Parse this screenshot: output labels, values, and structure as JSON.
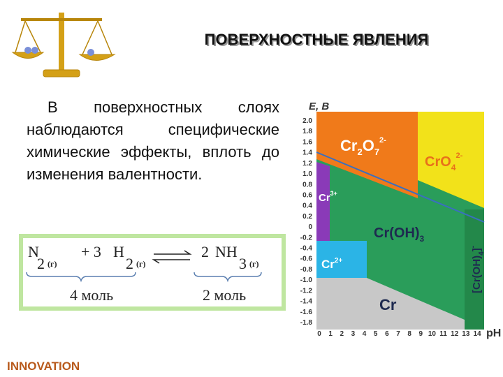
{
  "header": {
    "title": "ПОВЕРХНОСТНЫЕ ЯВЛЕНИЯ"
  },
  "text": "В поверхностных слоях наблюдаются специфические химические эффекты, вплоть до изменения валентности.",
  "equation": {
    "left": {
      "n": "N",
      "n_sub": "2",
      "n_state": "(г)",
      "plus": "+ 3",
      "h": "H",
      "h_sub": "2",
      "h_state": "(г)",
      "moles": "4 моль"
    },
    "right": {
      "coef": "2",
      "nh": "NH",
      "nh_sub": "3",
      "nh_state": "(г)",
      "moles": "2 моль"
    }
  },
  "diagram": {
    "y_label": "E, B",
    "x_label": "pH",
    "y_ticks": [
      "2.0",
      "1.8",
      "1.6",
      "1.4",
      "1.2",
      "1.0",
      "0.8",
      "0.6",
      "0.4",
      "0.2",
      "0",
      "-0.2",
      "-0.4",
      "-0.6",
      "-0.8",
      "-1.0",
      "-1.2",
      "-1.4",
      "-1.6",
      "-1.8"
    ],
    "x_ticks": [
      "0",
      "1",
      "2",
      "3",
      "4",
      "5",
      "6",
      "7",
      "8",
      "9",
      "10",
      "11",
      "12",
      "13",
      "14"
    ],
    "regions": {
      "cr2o7": [
        "Cr",
        "2",
        "O",
        "7",
        "2-"
      ],
      "cro4": [
        "CrO",
        "4",
        "2-"
      ],
      "cr3": [
        "Cr",
        "3+"
      ],
      "croh3": [
        "Cr(OH)",
        "3"
      ],
      "cr2": [
        "Cr",
        "2+"
      ],
      "cr": [
        "Cr"
      ],
      "croh4": [
        "[Cr(OH)",
        "4",
        "]",
        "-"
      ]
    }
  },
  "footer": "INNOVATION"
}
